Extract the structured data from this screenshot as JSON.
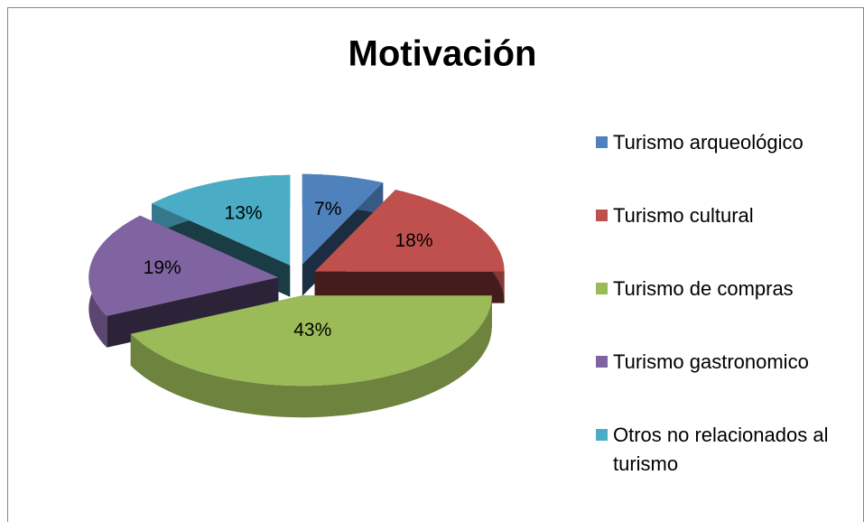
{
  "chart_data": {
    "type": "pie3d",
    "title": "Motivación",
    "categories": [
      "Turismo arqueológico",
      "Turismo cultural",
      "Turismo de compras",
      "Turismo gastronomico",
      "Otros no relacionados al turismo"
    ],
    "values": [
      7,
      18,
      43,
      19,
      13
    ],
    "value_labels": [
      "7%",
      "18%",
      "43%",
      "19%",
      "13%"
    ],
    "colors": [
      "#4f81bd",
      "#c0504d",
      "#9bbb59",
      "#8064a2",
      "#4bacc6"
    ],
    "legend": "right"
  }
}
